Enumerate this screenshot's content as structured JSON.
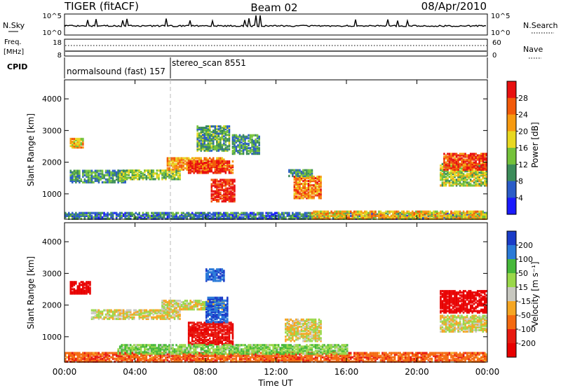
{
  "header": {
    "title": "TIGER (fitACF)",
    "beam": "Beam 02",
    "date": "08/Apr/2010"
  },
  "top_panels": {
    "nsky_label": "N.Sky",
    "nsky_ticks": [
      "10^5",
      "10^0"
    ],
    "nsearch_label": "N.Search",
    "nsearch_ticks": [
      "10^5",
      "10^0"
    ],
    "freq_label_1": "Freq.",
    "freq_label_2": "[MHz]",
    "freq_ticks": [
      "18",
      "8"
    ],
    "nave_label": "Nave",
    "nave_ticks": [
      "60",
      "0"
    ],
    "cpid_label": "CPID",
    "cpid_modes": [
      {
        "label": "normalsound (fast) 157",
        "start_hour": 0
      },
      {
        "label": "stereo_scan 8551",
        "start_hour": 6
      }
    ]
  },
  "chart_data": [
    {
      "type": "heatmap",
      "panel": "power",
      "ylabel": "Slant Range [km]",
      "y_ticks": [
        "1000",
        "2000",
        "3000",
        "4000"
      ],
      "ylim": [
        200,
        4600
      ],
      "xlim_hours": [
        0,
        24
      ],
      "colorbar_label": "Power [dB]",
      "colorbar_ticks": [
        "4",
        "8",
        "12",
        "16",
        "20",
        "24",
        "28"
      ],
      "colorbar_colors": [
        "#1a1aff",
        "#2a5cc8",
        "#3c8c5a",
        "#74c23a",
        "#e8d820",
        "#f79a10",
        "#f25a0a",
        "#e81010"
      ],
      "regions": [
        {
          "x0": 0.3,
          "x1": 1.0,
          "y0": 2500,
          "y1": 2800,
          "v": 20
        },
        {
          "x0": 0.3,
          "x1": 3.5,
          "y0": 1400,
          "y1": 1800,
          "v": 10
        },
        {
          "x0": 3.0,
          "x1": 6.5,
          "y0": 1500,
          "y1": 1800,
          "v": 14
        },
        {
          "x0": 5.8,
          "x1": 9.0,
          "y0": 1800,
          "y1": 2200,
          "v": 22
        },
        {
          "x0": 7.0,
          "x1": 9.5,
          "y0": 1700,
          "y1": 2100,
          "v": 28
        },
        {
          "x0": 8.3,
          "x1": 9.6,
          "y0": 800,
          "y1": 1500,
          "v": 30
        },
        {
          "x0": 7.5,
          "x1": 9.3,
          "y0": 2400,
          "y1": 3200,
          "v": 12
        },
        {
          "x0": 9.5,
          "x1": 11.0,
          "y0": 2300,
          "y1": 2900,
          "v": 10
        },
        {
          "x0": 13.0,
          "x1": 14.5,
          "y0": 900,
          "y1": 1600,
          "v": 24
        },
        {
          "x0": 12.7,
          "x1": 14.0,
          "y0": 1600,
          "y1": 1800,
          "v": 10
        },
        {
          "x0": 21.3,
          "x1": 24.0,
          "y0": 1300,
          "y1": 2000,
          "v": 16
        },
        {
          "x0": 21.5,
          "x1": 24.0,
          "y0": 1800,
          "y1": 2300,
          "v": 28
        },
        {
          "x0": 0.0,
          "x1": 24.0,
          "y0": 250,
          "y1": 450,
          "v": 8
        },
        {
          "x0": 14.0,
          "x1": 24.0,
          "y0": 250,
          "y1": 500,
          "v": 20
        }
      ]
    },
    {
      "type": "heatmap",
      "panel": "velocity",
      "ylabel": "Slant Range [km]",
      "y_ticks": [
        "1000",
        "2000",
        "3000",
        "4000"
      ],
      "ylim": [
        200,
        4600
      ],
      "xlim_hours": [
        0,
        24
      ],
      "x_ticks": [
        "00:00",
        "04:00",
        "08:00",
        "12:00",
        "16:00",
        "20:00",
        "00:00"
      ],
      "xlabel": "Time UT",
      "colorbar_label": "Velocity [m s⁻¹]",
      "colorbar_ticks": [
        "200",
        "100",
        "50",
        "15",
        "-15",
        "-50",
        "-100",
        "-200"
      ],
      "colorbar_colors": [
        "#1a3cc8",
        "#2a7ad8",
        "#46b83a",
        "#9ad84a",
        "#c8c8c0",
        "#f5a623",
        "#f46a10",
        "#e81a10",
        "#e80000"
      ],
      "regions": [
        {
          "x0": 0.3,
          "x1": 1.5,
          "y0": 2400,
          "y1": 2800,
          "v": -200
        },
        {
          "x0": 1.5,
          "x1": 6.5,
          "y0": 1600,
          "y1": 1900,
          "v": 0
        },
        {
          "x0": 5.5,
          "x1": 9.0,
          "y0": 1900,
          "y1": 2200,
          "v": 0
        },
        {
          "x0": 7.0,
          "x1": 9.5,
          "y0": 800,
          "y1": 1500,
          "v": -150
        },
        {
          "x0": 8.0,
          "x1": 9.2,
          "y0": 1500,
          "y1": 2300,
          "v": 150
        },
        {
          "x0": 8.0,
          "x1": 9.0,
          "y0": 2800,
          "y1": 3200,
          "v": 150
        },
        {
          "x0": 12.5,
          "x1": 14.5,
          "y0": 900,
          "y1": 1600,
          "v": 0
        },
        {
          "x0": 21.3,
          "x1": 24.0,
          "y0": 1800,
          "y1": 2500,
          "v": -200
        },
        {
          "x0": 21.3,
          "x1": 24.0,
          "y0": 1200,
          "y1": 1700,
          "v": 0
        },
        {
          "x0": 0.0,
          "x1": 24.0,
          "y0": 250,
          "y1": 550,
          "v": -60
        },
        {
          "x0": 3.0,
          "x1": 16.0,
          "y0": 500,
          "y1": 800,
          "v": 30
        }
      ]
    }
  ]
}
